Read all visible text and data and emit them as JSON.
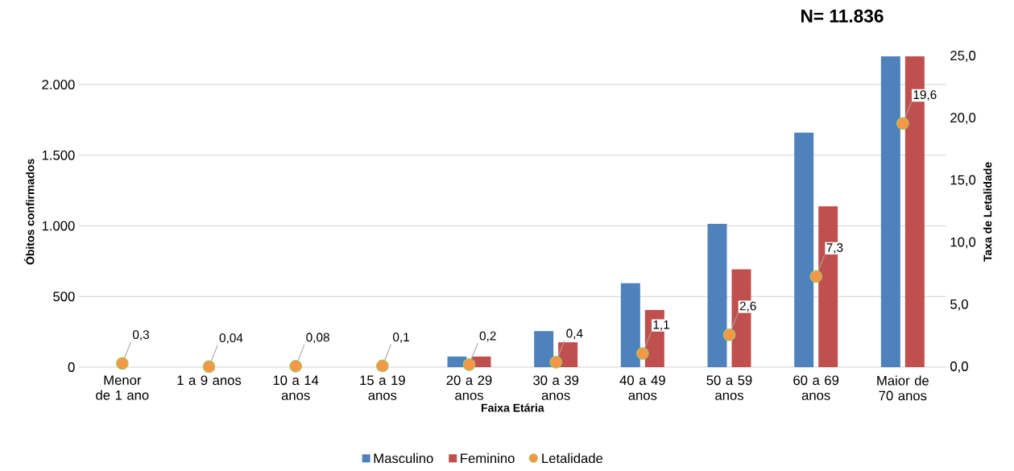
{
  "chart_data": {
    "type": "bar",
    "title": "N= 11.836",
    "xlabel": "Faixa Etária",
    "ylabel": "Óbitos confirmados",
    "y2label": "Taxa de Letalidade",
    "categories": [
      "Menor de 1 ano",
      "1 a 9 anos",
      "10 a 14 anos",
      "15 a 19 anos",
      "20 a 29 anos",
      "30 a 39 anos",
      "40 a 49 anos",
      "50 a 59 anos",
      "60 a 69 anos",
      "Maior de 70 anos"
    ],
    "series": [
      {
        "name": "Masculino",
        "color": "#4f81bd",
        "values": [
          0,
          0,
          0,
          0,
          75,
          255,
          594,
          1015,
          1660,
          2200
        ]
      },
      {
        "name": "Feminino",
        "color": "#c0504d",
        "values": [
          0,
          0,
          0,
          0,
          75,
          176,
          404,
          692,
          1138,
          2200
        ]
      },
      {
        "name": "Letalidade",
        "type": "scatter",
        "axis": "y2",
        "marker": "circle",
        "color": "#f79646",
        "values": [
          0.3,
          0.04,
          0.08,
          0.1,
          0.2,
          0.4,
          1.1,
          2.6,
          7.3,
          19.6
        ],
        "value_labels": [
          "0,3",
          "0,04",
          "0,08",
          "0,1",
          "0,2",
          "0,4",
          "1,1",
          "2,6",
          "7,3",
          "19,6"
        ]
      }
    ],
    "ylim": [
      0,
      2200
    ],
    "yticks": [
      0,
      500,
      {
        "value": 1000,
        "label": "1.000"
      },
      {
        "value": 1500,
        "label": "1.500"
      },
      {
        "value": 2000,
        "label": "2.000"
      }
    ],
    "y2lim": [
      0,
      25
    ],
    "y2ticks": [
      {
        "value": 0,
        "label": "0,0"
      },
      {
        "value": 5,
        "label": "5,0"
      },
      {
        "value": 10,
        "label": "10,0"
      },
      {
        "value": 15,
        "label": "15,0"
      },
      {
        "value": 20,
        "label": "20,0"
      },
      {
        "value": 25,
        "label": "25,0"
      }
    ],
    "grid": "y",
    "legend": "bottom"
  }
}
